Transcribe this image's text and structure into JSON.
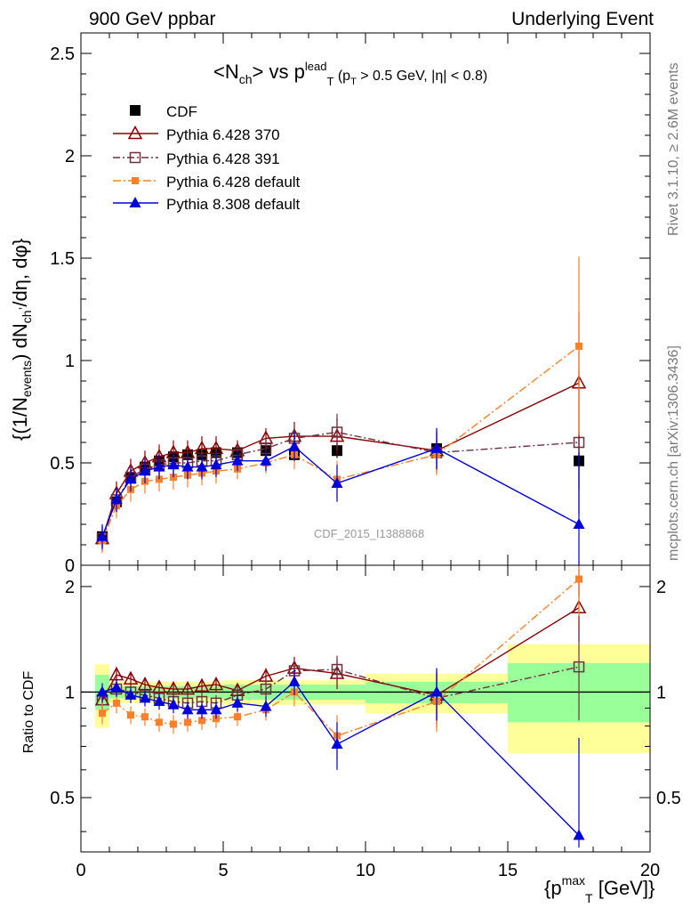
{
  "header": {
    "left": "900 GeV ppbar",
    "right": "Underlying Event"
  },
  "side_labels": {
    "rivet": "Rivet 3.1.10, ≥ 2.6M events",
    "mcplots": "mcplots.cern.ch [arXiv:1306.3436]"
  },
  "watermark": "CDF_2015_I1388868",
  "colors": {
    "cdf": "#000000",
    "p370": "#8b0000",
    "p391": "#6e3040",
    "p6def": "#ff7f27",
    "p8def": "#0000dd",
    "band_inner": "#99ff99",
    "band_outer": "#ffff99"
  },
  "chart_data": [
    {
      "type": "scatter",
      "title": "<Nch> vs pT lead (pT > 0.5 GeV, |η| < 0.8)",
      "ylabel": "{(1/N_events) dN_ch^,/dη, dφ}",
      "xlabel": "{p_T^max [GeV]}",
      "xlim": [
        0,
        20
      ],
      "ylim": [
        0,
        2.6
      ],
      "yticks": [
        "0",
        "0.5",
        "1",
        "1.5",
        "2",
        "2.5"
      ],
      "legend": [
        "CDF",
        "Pythia 6.428 370",
        "Pythia 6.428 391",
        "Pythia 6.428 default",
        "Pythia 8.308 default"
      ],
      "x": [
        0.75,
        1.25,
        1.75,
        2.25,
        2.75,
        3.25,
        3.75,
        4.25,
        4.75,
        5.5,
        6.5,
        7.5,
        9.0,
        12.5,
        17.5
      ],
      "series": [
        {
          "name": "CDF",
          "values": [
            0.14,
            0.31,
            0.43,
            0.48,
            0.51,
            0.53,
            0.54,
            0.54,
            0.55,
            0.55,
            0.56,
            0.54,
            0.56,
            0.57,
            0.51
          ]
        },
        {
          "name": "Pythia 6.428 370",
          "values": [
            0.13,
            0.35,
            0.46,
            0.5,
            0.53,
            0.55,
            0.55,
            0.57,
            0.57,
            0.56,
            0.62,
            0.63,
            0.63,
            0.56,
            0.89
          ]
        },
        {
          "name": "Pythia 6.428 391",
          "values": [
            0.13,
            0.32,
            0.43,
            0.47,
            0.49,
            0.5,
            0.5,
            0.51,
            0.51,
            0.54,
            0.57,
            0.62,
            0.65,
            0.55,
            0.6
          ]
        },
        {
          "name": "Pythia 6.428 default",
          "values": [
            0.12,
            0.29,
            0.37,
            0.41,
            0.42,
            0.43,
            0.44,
            0.45,
            0.46,
            0.47,
            0.5,
            0.54,
            0.42,
            0.54,
            1.07
          ]
        },
        {
          "name": "Pythia 8.308 default",
          "values": [
            0.14,
            0.32,
            0.42,
            0.46,
            0.48,
            0.49,
            0.48,
            0.48,
            0.49,
            0.51,
            0.51,
            0.58,
            0.4,
            0.57,
            0.2
          ]
        }
      ]
    },
    {
      "type": "scatter",
      "ylabel": "Ratio to CDF",
      "xlabel": "{p_T^max [GeV]}",
      "xlim": [
        0,
        20
      ],
      "ylim": [
        0.35,
        2.3
      ],
      "xticks": [
        "0",
        "5",
        "10",
        "15",
        "20"
      ],
      "yticks": [
        "0.5",
        "1",
        "2"
      ],
      "x": [
        0.75,
        1.25,
        1.75,
        2.25,
        2.75,
        3.25,
        3.75,
        4.25,
        4.75,
        5.5,
        6.5,
        7.5,
        9.0,
        12.5,
        17.5
      ],
      "series": [
        {
          "name": "Pythia 6.428 370",
          "values": [
            0.95,
            1.12,
            1.09,
            1.05,
            1.03,
            1.02,
            1.02,
            1.04,
            1.05,
            1.01,
            1.11,
            1.17,
            1.13,
            0.98,
            1.74
          ]
        },
        {
          "name": "Pythia 6.428 391",
          "values": [
            0.95,
            1.02,
            1.0,
            0.98,
            0.96,
            0.94,
            0.93,
            0.94,
            0.93,
            0.98,
            1.02,
            1.15,
            1.16,
            0.96,
            1.18
          ]
        },
        {
          "name": "Pythia 6.428 default",
          "values": [
            0.87,
            0.93,
            0.86,
            0.85,
            0.82,
            0.81,
            0.82,
            0.83,
            0.84,
            0.85,
            0.89,
            1.0,
            0.75,
            0.94,
            2.1
          ]
        },
        {
          "name": "Pythia 8.308 default",
          "values": [
            1.0,
            1.03,
            0.98,
            0.96,
            0.94,
            0.92,
            0.89,
            0.89,
            0.89,
            0.93,
            0.91,
            1.07,
            0.71,
            1.0,
            0.39
          ]
        }
      ],
      "bands": [
        {
          "x": [
            0.5,
            1.0
          ],
          "inner": [
            0.89,
            1.12
          ],
          "outer": [
            0.79,
            1.2
          ]
        },
        {
          "x": [
            1.0,
            5.0
          ],
          "inner": [
            0.96,
            1.04
          ],
          "outer": [
            0.93,
            1.07
          ]
        },
        {
          "x": [
            5.0,
            10.0
          ],
          "inner": [
            0.95,
            1.05
          ],
          "outer": [
            0.92,
            1.08
          ]
        },
        {
          "x": [
            10.0,
            15.0
          ],
          "inner": [
            0.93,
            1.07
          ],
          "outer": [
            0.87,
            1.13
          ]
        },
        {
          "x": [
            15.0,
            20.0
          ],
          "inner": [
            0.82,
            1.21
          ],
          "outer": [
            0.67,
            1.37
          ]
        }
      ]
    }
  ]
}
